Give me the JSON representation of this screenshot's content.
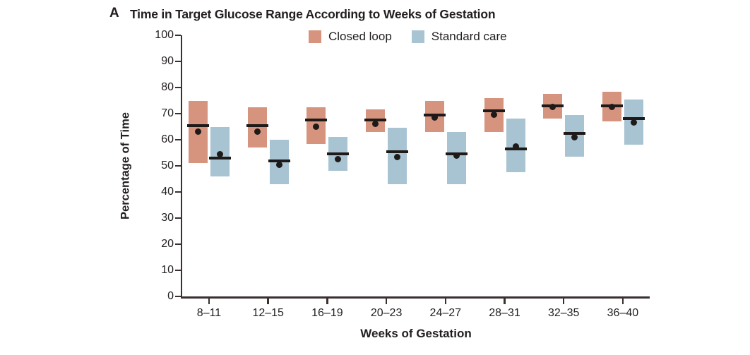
{
  "panel_label": "A",
  "title": "Time in Target Glucose Range According to Weeks of Gestation",
  "colors": {
    "closed_loop": "#d6947e",
    "standard_care": "#a8c3d2",
    "marker": "#1d1a19",
    "axis": "#39312f",
    "text": "#221e1f",
    "background": "#ffffff"
  },
  "legend": {
    "items": [
      {
        "label": "Closed loop",
        "color_key": "closed_loop"
      },
      {
        "label": "Standard care",
        "color_key": "standard_care"
      }
    ]
  },
  "chart_data": {
    "type": "box",
    "title": "Time in Target Glucose Range According to Weeks of Gestation",
    "xlabel": "Weeks of Gestation",
    "ylabel": "Percentage of Time",
    "ylim": [
      0,
      100
    ],
    "yticks": [
      0,
      10,
      20,
      30,
      40,
      50,
      60,
      70,
      80,
      90,
      100
    ],
    "grid": false,
    "legend_position": "top",
    "categories": [
      "8–11",
      "12–15",
      "16–19",
      "20–23",
      "24–27",
      "28–31",
      "32–35",
      "36–40"
    ],
    "series": [
      {
        "name": "Closed loop",
        "color_key": "closed_loop",
        "boxes": [
          {
            "q1": 51,
            "q3": 75,
            "median": 65.5,
            "mean": 63
          },
          {
            "q1": 57,
            "q3": 72.5,
            "median": 65.5,
            "mean": 63
          },
          {
            "q1": 58.5,
            "q3": 72.5,
            "median": 67.5,
            "mean": 65
          },
          {
            "q1": 63,
            "q3": 71.5,
            "median": 67.5,
            "mean": 66
          },
          {
            "q1": 63,
            "q3": 75,
            "median": 69.5,
            "mean": 68.5
          },
          {
            "q1": 63,
            "q3": 76,
            "median": 71,
            "mean": 69.5
          },
          {
            "q1": 68,
            "q3": 77.5,
            "median": 73,
            "mean": 72.5
          },
          {
            "q1": 67,
            "q3": 78.5,
            "median": 73,
            "mean": 72.5
          }
        ]
      },
      {
        "name": "Standard care",
        "color_key": "standard_care",
        "boxes": [
          {
            "q1": 46,
            "q3": 65,
            "median": 53,
            "mean": 54.5
          },
          {
            "q1": 43,
            "q3": 60,
            "median": 52,
            "mean": 50.5
          },
          {
            "q1": 48,
            "q3": 61,
            "median": 54.5,
            "mean": 52.5
          },
          {
            "q1": 43,
            "q3": 64.5,
            "median": 55.5,
            "mean": 53.5
          },
          {
            "q1": 43,
            "q3": 63,
            "median": 54.5,
            "mean": 54
          },
          {
            "q1": 47.5,
            "q3": 68,
            "median": 56.5,
            "mean": 57.5
          },
          {
            "q1": 53.5,
            "q3": 69.5,
            "median": 62.5,
            "mean": 61
          },
          {
            "q1": 58,
            "q3": 75.5,
            "median": 68,
            "mean": 66.5
          }
        ]
      }
    ]
  }
}
